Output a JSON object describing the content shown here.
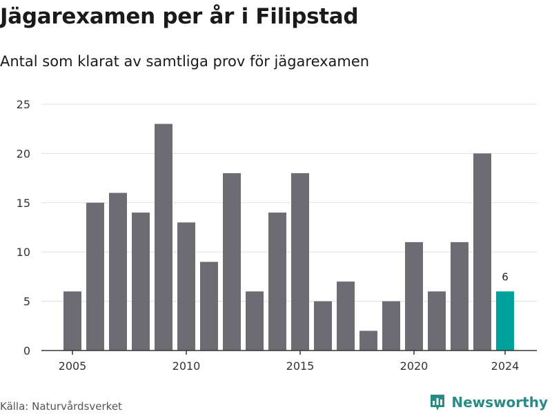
{
  "title": "Jägarexamen per år i Filipstad",
  "subtitle": "Antal som klarat av samtliga prov för jägarexamen",
  "source": "Källa: Naturvårdsverket",
  "brand": {
    "name": "Newsworthy",
    "icon": "newsworthy-logo-icon",
    "color": "#2a8a86"
  },
  "colors": {
    "bar": "#6d6c72",
    "highlight": "#00a09a",
    "grid": "#dddddd",
    "axis": "#333333"
  },
  "chart_data": {
    "type": "bar",
    "title": "Jägarexamen per år i Filipstad",
    "subtitle": "Antal som klarat av samtliga prov för jägarexamen",
    "xlabel": "",
    "ylabel": "",
    "ylim": [
      0,
      25
    ],
    "y_ticks": [
      0,
      5,
      10,
      15,
      20,
      25
    ],
    "x_ticks": [
      2005,
      2010,
      2015,
      2020,
      2024
    ],
    "grid": true,
    "legend": "none",
    "categories": [
      2005,
      2006,
      2007,
      2008,
      2009,
      2010,
      2011,
      2012,
      2013,
      2014,
      2015,
      2016,
      2017,
      2018,
      2019,
      2020,
      2021,
      2022,
      2023,
      2024
    ],
    "values": [
      6,
      15,
      16,
      14,
      23,
      13,
      9,
      18,
      6,
      14,
      18,
      5,
      7,
      2,
      5,
      11,
      6,
      11,
      20,
      6
    ],
    "highlight": {
      "category": 2024,
      "label": "6"
    }
  }
}
